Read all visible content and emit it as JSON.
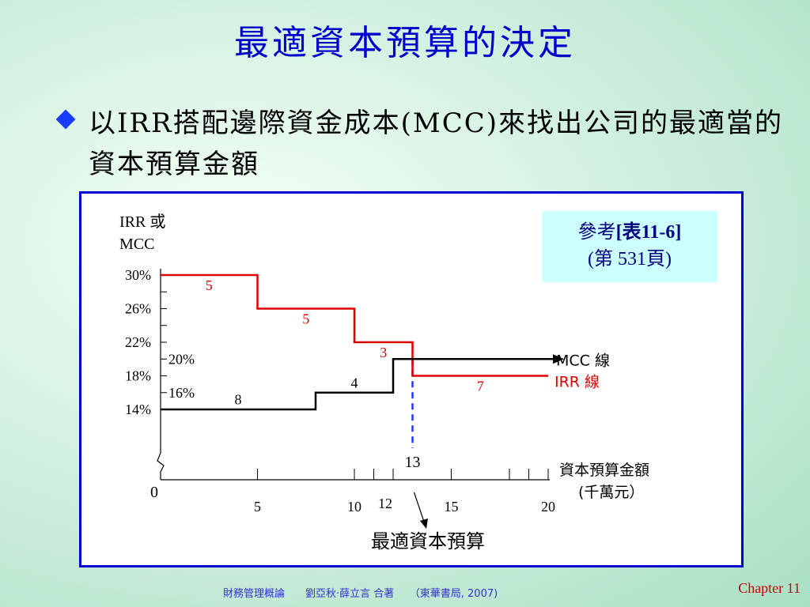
{
  "slide": {
    "title": "最適資本預算的決定",
    "bullet": "以IRR搭配邊際資金成本(MCC)來找出公司的最適當的資本預算金額",
    "footer": "財務管理概論　　劉亞秋‧薛立言  合著　　（東華書局, 2007)",
    "chapter": "Chapter 11"
  },
  "reference": {
    "line1_prefix": "參考",
    "line1_bold": "[表11-6]",
    "line2": "(第 531頁)"
  },
  "chart_data": {
    "type": "line",
    "ylabel_line1": "IRR 或",
    "ylabel_line2": "MCC",
    "xlabel_line1": "資本預算金額",
    "xlabel_line2": "(千萬元）",
    "origin_label": "0",
    "y_ticks": [
      {
        "label": "30%",
        "value": 30
      },
      {
        "label": "26%",
        "value": 26
      },
      {
        "label": "22%",
        "value": 22
      },
      {
        "label": "18%",
        "value": 18
      },
      {
        "label": "14%",
        "value": 14
      }
    ],
    "y_inner_ticks": [
      {
        "label": "20%",
        "value": 20
      },
      {
        "label": "16%",
        "value": 16
      }
    ],
    "x_ticks": [
      {
        "label": "5",
        "value": 5
      },
      {
        "label": "10",
        "value": 10
      },
      {
        "label": "12",
        "value": 12
      },
      {
        "label": "15",
        "value": 15
      },
      {
        "label": "20",
        "value": 20
      }
    ],
    "series": [
      {
        "name": "IRR 線",
        "color": "#dd0000",
        "points": [
          [
            0,
            30
          ],
          [
            5,
            30
          ],
          [
            5,
            26
          ],
          [
            10,
            26
          ],
          [
            10,
            22
          ],
          [
            13,
            22
          ],
          [
            13,
            18
          ],
          [
            20,
            18
          ]
        ],
        "segment_labels": [
          {
            "text": "5",
            "x": 2.5,
            "y": 28.2
          },
          {
            "text": "5",
            "x": 7.5,
            "y": 24.2
          },
          {
            "text": "3",
            "x": 11.5,
            "y": 20.2
          },
          {
            "text": "7",
            "x": 16.5,
            "y": 16.2
          }
        ]
      },
      {
        "name": "MCC 線",
        "color": "#000000",
        "points": [
          [
            0,
            14
          ],
          [
            8,
            14
          ],
          [
            8,
            16
          ],
          [
            12,
            16
          ],
          [
            12,
            20
          ],
          [
            20,
            20
          ]
        ],
        "segment_labels": [
          {
            "text": "8",
            "x": 4,
            "y": 14.6
          },
          {
            "text": "4",
            "x": 10,
            "y": 16.6
          }
        ]
      }
    ],
    "optimum": {
      "x": 13,
      "label": "13"
    },
    "optimum_annotation": "最適資本預算",
    "xlim": [
      0,
      20
    ],
    "ylim": [
      14,
      30
    ]
  }
}
